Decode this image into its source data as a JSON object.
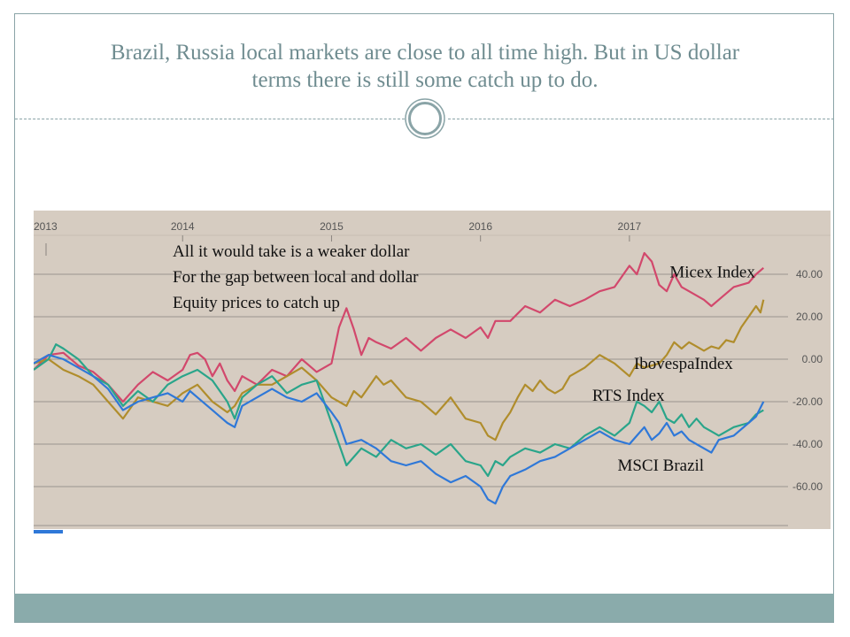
{
  "slide": {
    "title_line1": "Brazil, Russia local markets are close to all time high. But in US dollar",
    "title_line2": "terms there is still some catch up to do."
  },
  "colors": {
    "frame": "#8aa4a7",
    "title": "#6f8c90",
    "footer_band": "#8aabab",
    "chart_background": "#d6ccc1",
    "gridline": "#9a948e"
  },
  "chart_data": {
    "type": "line",
    "title": "",
    "xlabel": "",
    "ylabel": "",
    "x_ticks": [
      "2013",
      "2014",
      "2015",
      "2016",
      "2017"
    ],
    "x_tick_years": [
      2013.0,
      2014.0,
      2015.0,
      2016.0,
      2017.0
    ],
    "y_ticks": [
      "40.00",
      "20.00",
      "0.00",
      "-20.00",
      "-40.00",
      "-60.00"
    ],
    "y_tick_values": [
      40,
      20,
      0,
      -20,
      -40,
      -60
    ],
    "xlim": [
      2013.0,
      2018.35
    ],
    "ylim": [
      -80,
      70
    ],
    "grid": true,
    "legend": "none",
    "annotations": [
      "All it would take is a weaker dollar",
      "For the gap between local and dollar",
      "Equity prices to catch up"
    ],
    "series": [
      {
        "name": "Micex Index",
        "color": "#d2486c",
        "points": [
          [
            2013.0,
            -5
          ],
          [
            2013.1,
            2
          ],
          [
            2013.2,
            3
          ],
          [
            2013.3,
            -3
          ],
          [
            2013.4,
            -6
          ],
          [
            2013.5,
            -12
          ],
          [
            2013.6,
            -20
          ],
          [
            2013.7,
            -12
          ],
          [
            2013.8,
            -6
          ],
          [
            2013.9,
            -10
          ],
          [
            2014.0,
            -5
          ],
          [
            2014.05,
            2
          ],
          [
            2014.1,
            3
          ],
          [
            2014.15,
            0
          ],
          [
            2014.2,
            -8
          ],
          [
            2014.25,
            -2
          ],
          [
            2014.3,
            -10
          ],
          [
            2014.35,
            -15
          ],
          [
            2014.4,
            -8
          ],
          [
            2014.5,
            -12
          ],
          [
            2014.6,
            -5
          ],
          [
            2014.7,
            -8
          ],
          [
            2014.8,
            0
          ],
          [
            2014.85,
            -3
          ],
          [
            2014.9,
            -6
          ],
          [
            2015.0,
            -2
          ],
          [
            2015.05,
            15
          ],
          [
            2015.1,
            24
          ],
          [
            2015.15,
            14
          ],
          [
            2015.2,
            2
          ],
          [
            2015.25,
            10
          ],
          [
            2015.3,
            8
          ],
          [
            2015.4,
            5
          ],
          [
            2015.5,
            10
          ],
          [
            2015.6,
            4
          ],
          [
            2015.7,
            10
          ],
          [
            2015.8,
            14
          ],
          [
            2015.9,
            10
          ],
          [
            2016.0,
            15
          ],
          [
            2016.05,
            10
          ],
          [
            2016.1,
            18
          ],
          [
            2016.2,
            18
          ],
          [
            2016.3,
            25
          ],
          [
            2016.4,
            22
          ],
          [
            2016.5,
            28
          ],
          [
            2016.6,
            25
          ],
          [
            2016.7,
            28
          ],
          [
            2016.8,
            32
          ],
          [
            2016.9,
            34
          ],
          [
            2017.0,
            44
          ],
          [
            2017.05,
            40
          ],
          [
            2017.1,
            50
          ],
          [
            2017.15,
            46
          ],
          [
            2017.2,
            35
          ],
          [
            2017.25,
            32
          ],
          [
            2017.3,
            40
          ],
          [
            2017.35,
            34
          ],
          [
            2017.4,
            32
          ],
          [
            2017.5,
            28
          ],
          [
            2017.55,
            25
          ],
          [
            2017.6,
            28
          ],
          [
            2017.7,
            34
          ],
          [
            2017.8,
            36
          ],
          [
            2017.85,
            40
          ],
          [
            2017.9,
            43
          ]
        ]
      },
      {
        "name": "IbovespaIndex",
        "color": "#b08d2c",
        "points": [
          [
            2013.0,
            -2
          ],
          [
            2013.1,
            0
          ],
          [
            2013.2,
            -5
          ],
          [
            2013.3,
            -8
          ],
          [
            2013.4,
            -12
          ],
          [
            2013.5,
            -20
          ],
          [
            2013.6,
            -28
          ],
          [
            2013.7,
            -18
          ],
          [
            2013.8,
            -20
          ],
          [
            2013.9,
            -22
          ],
          [
            2014.0,
            -16
          ],
          [
            2014.1,
            -12
          ],
          [
            2014.2,
            -20
          ],
          [
            2014.3,
            -25
          ],
          [
            2014.35,
            -22
          ],
          [
            2014.4,
            -16
          ],
          [
            2014.5,
            -12
          ],
          [
            2014.6,
            -12
          ],
          [
            2014.7,
            -8
          ],
          [
            2014.8,
            -4
          ],
          [
            2014.9,
            -10
          ],
          [
            2015.0,
            -18
          ],
          [
            2015.05,
            -20
          ],
          [
            2015.1,
            -22
          ],
          [
            2015.15,
            -15
          ],
          [
            2015.2,
            -18
          ],
          [
            2015.3,
            -8
          ],
          [
            2015.35,
            -12
          ],
          [
            2015.4,
            -10
          ],
          [
            2015.5,
            -18
          ],
          [
            2015.6,
            -20
          ],
          [
            2015.7,
            -26
          ],
          [
            2015.8,
            -18
          ],
          [
            2015.9,
            -28
          ],
          [
            2016.0,
            -30
          ],
          [
            2016.05,
            -36
          ],
          [
            2016.1,
            -38
          ],
          [
            2016.15,
            -30
          ],
          [
            2016.2,
            -25
          ],
          [
            2016.25,
            -18
          ],
          [
            2016.3,
            -12
          ],
          [
            2016.35,
            -15
          ],
          [
            2016.4,
            -10
          ],
          [
            2016.45,
            -14
          ],
          [
            2016.5,
            -16
          ],
          [
            2016.55,
            -14
          ],
          [
            2016.6,
            -8
          ],
          [
            2016.7,
            -4
          ],
          [
            2016.8,
            2
          ],
          [
            2016.85,
            0
          ],
          [
            2016.9,
            -2
          ],
          [
            2017.0,
            -8
          ],
          [
            2017.05,
            -2
          ],
          [
            2017.1,
            -4
          ],
          [
            2017.15,
            -3
          ],
          [
            2017.2,
            -2
          ],
          [
            2017.25,
            2
          ],
          [
            2017.3,
            8
          ],
          [
            2017.35,
            5
          ],
          [
            2017.4,
            8
          ],
          [
            2017.45,
            6
          ],
          [
            2017.5,
            4
          ],
          [
            2017.55,
            6
          ],
          [
            2017.6,
            5
          ],
          [
            2017.65,
            9
          ],
          [
            2017.7,
            8
          ],
          [
            2017.75,
            15
          ],
          [
            2017.8,
            20
          ],
          [
            2017.85,
            25
          ],
          [
            2017.88,
            22
          ],
          [
            2017.9,
            28
          ]
        ]
      },
      {
        "name": "RTS Index",
        "color": "#2aa58a",
        "points": [
          [
            2013.0,
            -5
          ],
          [
            2013.1,
            0
          ],
          [
            2013.15,
            7
          ],
          [
            2013.2,
            5
          ],
          [
            2013.3,
            0
          ],
          [
            2013.4,
            -8
          ],
          [
            2013.5,
            -12
          ],
          [
            2013.6,
            -22
          ],
          [
            2013.7,
            -15
          ],
          [
            2013.8,
            -20
          ],
          [
            2013.9,
            -12
          ],
          [
            2014.0,
            -8
          ],
          [
            2014.1,
            -5
          ],
          [
            2014.2,
            -10
          ],
          [
            2014.3,
            -20
          ],
          [
            2014.35,
            -28
          ],
          [
            2014.4,
            -18
          ],
          [
            2014.5,
            -12
          ],
          [
            2014.6,
            -8
          ],
          [
            2014.7,
            -16
          ],
          [
            2014.8,
            -12
          ],
          [
            2014.9,
            -10
          ],
          [
            2015.0,
            -30
          ],
          [
            2015.05,
            -40
          ],
          [
            2015.1,
            -50
          ],
          [
            2015.15,
            -46
          ],
          [
            2015.2,
            -42
          ],
          [
            2015.3,
            -46
          ],
          [
            2015.4,
            -38
          ],
          [
            2015.5,
            -42
          ],
          [
            2015.6,
            -40
          ],
          [
            2015.7,
            -45
          ],
          [
            2015.8,
            -40
          ],
          [
            2015.9,
            -48
          ],
          [
            2016.0,
            -50
          ],
          [
            2016.05,
            -55
          ],
          [
            2016.1,
            -48
          ],
          [
            2016.15,
            -50
          ],
          [
            2016.2,
            -46
          ],
          [
            2016.3,
            -42
          ],
          [
            2016.4,
            -44
          ],
          [
            2016.5,
            -40
          ],
          [
            2016.6,
            -42
          ],
          [
            2016.7,
            -36
          ],
          [
            2016.8,
            -32
          ],
          [
            2016.9,
            -36
          ],
          [
            2017.0,
            -30
          ],
          [
            2017.05,
            -20
          ],
          [
            2017.1,
            -22
          ],
          [
            2017.15,
            -25
          ],
          [
            2017.2,
            -20
          ],
          [
            2017.25,
            -28
          ],
          [
            2017.3,
            -30
          ],
          [
            2017.35,
            -26
          ],
          [
            2017.4,
            -32
          ],
          [
            2017.45,
            -28
          ],
          [
            2017.5,
            -32
          ],
          [
            2017.55,
            -34
          ],
          [
            2017.6,
            -36
          ],
          [
            2017.7,
            -32
          ],
          [
            2017.8,
            -30
          ],
          [
            2017.85,
            -26
          ],
          [
            2017.9,
            -24
          ]
        ]
      },
      {
        "name": "MSCI Brazil",
        "color": "#2f78d8",
        "points": [
          [
            2013.0,
            -2
          ],
          [
            2013.1,
            2
          ],
          [
            2013.2,
            0
          ],
          [
            2013.3,
            -4
          ],
          [
            2013.4,
            -8
          ],
          [
            2013.5,
            -14
          ],
          [
            2013.6,
            -24
          ],
          [
            2013.7,
            -20
          ],
          [
            2013.8,
            -18
          ],
          [
            2013.9,
            -16
          ],
          [
            2014.0,
            -20
          ],
          [
            2014.05,
            -15
          ],
          [
            2014.1,
            -18
          ],
          [
            2014.2,
            -24
          ],
          [
            2014.3,
            -30
          ],
          [
            2014.35,
            -32
          ],
          [
            2014.4,
            -22
          ],
          [
            2014.5,
            -18
          ],
          [
            2014.6,
            -14
          ],
          [
            2014.7,
            -18
          ],
          [
            2014.8,
            -20
          ],
          [
            2014.9,
            -16
          ],
          [
            2015.0,
            -25
          ],
          [
            2015.05,
            -30
          ],
          [
            2015.1,
            -40
          ],
          [
            2015.2,
            -38
          ],
          [
            2015.3,
            -42
          ],
          [
            2015.4,
            -48
          ],
          [
            2015.5,
            -50
          ],
          [
            2015.6,
            -48
          ],
          [
            2015.7,
            -54
          ],
          [
            2015.8,
            -58
          ],
          [
            2015.9,
            -55
          ],
          [
            2016.0,
            -60
          ],
          [
            2016.05,
            -66
          ],
          [
            2016.1,
            -68
          ],
          [
            2016.15,
            -60
          ],
          [
            2016.2,
            -55
          ],
          [
            2016.3,
            -52
          ],
          [
            2016.4,
            -48
          ],
          [
            2016.5,
            -46
          ],
          [
            2016.6,
            -42
          ],
          [
            2016.7,
            -38
          ],
          [
            2016.8,
            -34
          ],
          [
            2016.9,
            -38
          ],
          [
            2017.0,
            -40
          ],
          [
            2017.05,
            -36
          ],
          [
            2017.1,
            -32
          ],
          [
            2017.15,
            -38
          ],
          [
            2017.2,
            -35
          ],
          [
            2017.25,
            -30
          ],
          [
            2017.3,
            -36
          ],
          [
            2017.35,
            -34
          ],
          [
            2017.4,
            -38
          ],
          [
            2017.45,
            -40
          ],
          [
            2017.5,
            -42
          ],
          [
            2017.55,
            -44
          ],
          [
            2017.6,
            -38
          ],
          [
            2017.7,
            -36
          ],
          [
            2017.8,
            -30
          ],
          [
            2017.85,
            -27
          ],
          [
            2017.9,
            -20
          ]
        ]
      }
    ]
  }
}
